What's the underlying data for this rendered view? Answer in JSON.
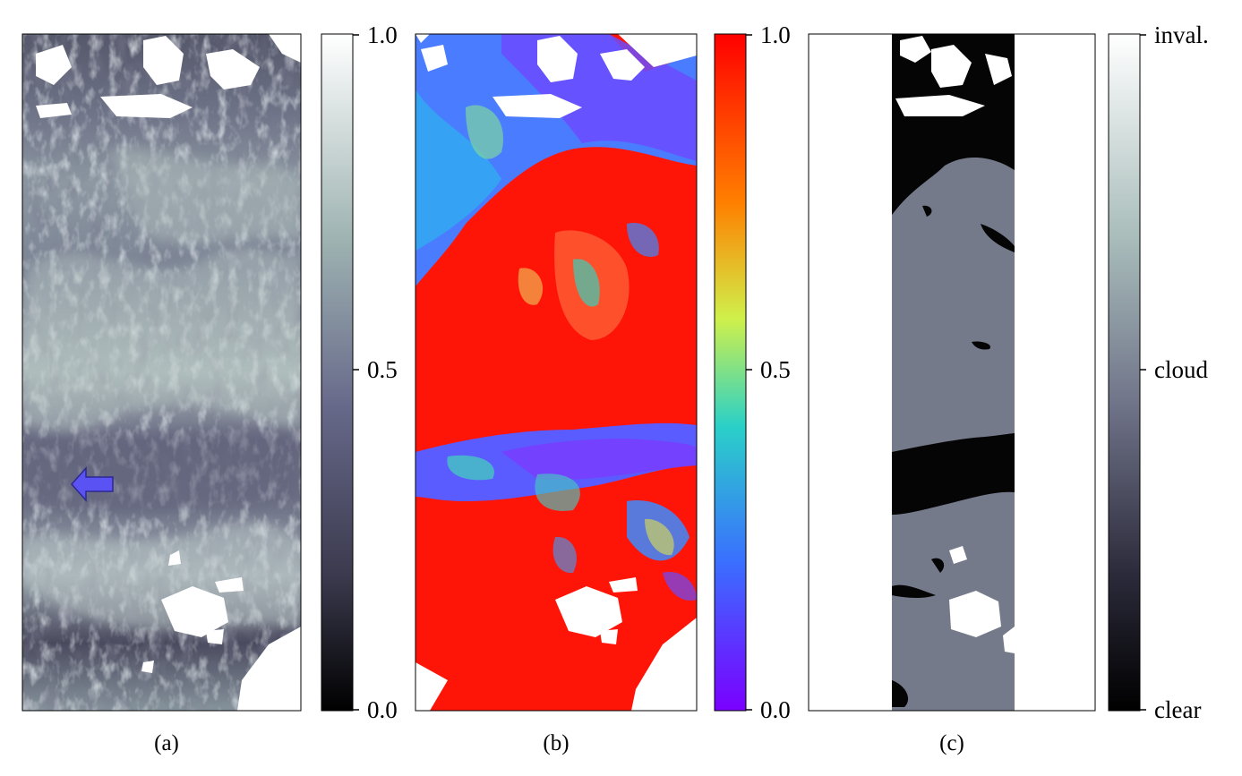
{
  "panels": [
    {
      "id": "a",
      "caption": "(a)",
      "colorbar": {
        "ticks": [
          "1.0",
          "0.5",
          "0.0"
        ],
        "colors": {
          "top": "#ffffff",
          "upper": "#9fb4b2",
          "mid": "#67698a",
          "lower": "#3b3a4e",
          "bottom": "#000000"
        }
      },
      "marker": "blue-arrow-left"
    },
    {
      "id": "b",
      "caption": "(b)",
      "colorbar": {
        "ticks": [
          "1.0",
          "0.5",
          "0.0"
        ],
        "colors": {
          "top": "#ff0000",
          "c1": "#ff8000",
          "c2": "#d0f04a",
          "c3": "#2ad0c8",
          "c4": "#3a6fff",
          "bottom": "#7a00ff"
        }
      }
    },
    {
      "id": "c",
      "caption": "(c)",
      "colorbar": {
        "ticks": [
          "inval.",
          "cloud",
          "clear"
        ],
        "colors": {
          "top": "#ffffff",
          "upper": "#a9bdbb",
          "mid": "#6f7388",
          "lower": "#2b2a3a",
          "bottom": "#000000"
        }
      }
    }
  ],
  "colors": {
    "frame": "#000000",
    "cloud_gray": "#757a8b",
    "clear_black": "#050505",
    "invalid_white": "#ffffff",
    "arrow_fill": "#5a52f2",
    "arrow_stroke": "#2c2890"
  }
}
